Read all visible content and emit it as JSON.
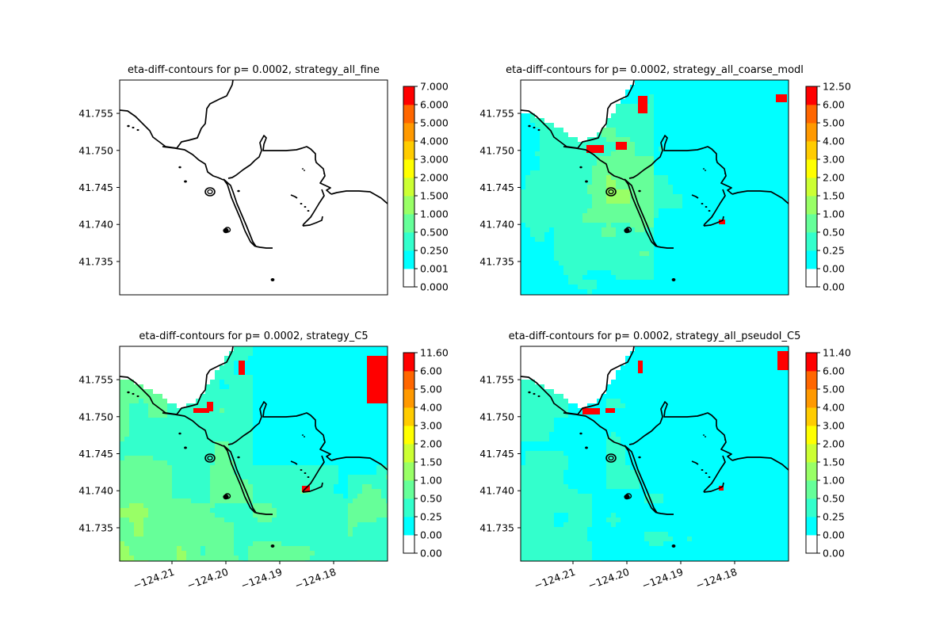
{
  "chart_data": [
    {
      "type": "heatmap",
      "title": "eta-diff-contours for p= 0.0002, strategy_all_fine",
      "colorbar_ticks": [
        "0.000",
        "0.001",
        "0.250",
        "0.500",
        "1.000",
        "1.500",
        "2.000",
        "3.000",
        "4.000",
        "5.000",
        "6.000",
        "7.000"
      ],
      "yticks": [
        "41.755",
        "41.750",
        "41.745",
        "41.740",
        "41.735"
      ],
      "xticks": [],
      "field": "none",
      "ylim": [
        41.7305,
        41.7595
      ]
    },
    {
      "type": "heatmap",
      "title": "eta-diff-contours for p= 0.0002, strategy_all_coarse_modl",
      "colorbar_ticks": [
        "0.00",
        "0.00",
        "0.25",
        "0.50",
        "1.00",
        "1.50",
        "2.00",
        "3.00",
        "4.00",
        "5.00",
        "6.00",
        "12.50"
      ],
      "yticks": [
        "41.755",
        "41.750",
        "41.745",
        "41.740",
        "41.735"
      ],
      "xticks": [],
      "field": "coarse",
      "ylim": [
        41.7305,
        41.7595
      ]
    },
    {
      "type": "heatmap",
      "title": "eta-diff-contours for p= 0.0002, strategy_C5",
      "colorbar_ticks": [
        "0.00",
        "0.00",
        "0.25",
        "0.50",
        "1.00",
        "1.50",
        "2.00",
        "3.00",
        "4.00",
        "5.00",
        "6.00",
        "11.60"
      ],
      "yticks": [
        "41.755",
        "41.750",
        "41.745",
        "41.740",
        "41.735"
      ],
      "xticks": [
        "−124.21",
        "−124.20",
        "−124.19",
        "−124.18"
      ],
      "field": "c5",
      "ylim": [
        41.7305,
        41.7595
      ]
    },
    {
      "type": "heatmap",
      "title": "eta-diff-contours for p= 0.0002, strategy_all_pseudoI_C5",
      "colorbar_ticks": [
        "0.00",
        "0.00",
        "0.25",
        "0.50",
        "1.00",
        "1.50",
        "2.00",
        "3.00",
        "4.00",
        "5.00",
        "6.00",
        "11.40"
      ],
      "yticks": [
        "41.755",
        "41.750",
        "41.745",
        "41.740",
        "41.735"
      ],
      "xticks": [
        "−124.21",
        "−124.20",
        "−124.19",
        "−124.18"
      ],
      "field": "pseudo",
      "ylim": [
        41.7305,
        41.7595
      ]
    }
  ],
  "colors": {
    "levels": [
      "#ffffff",
      "#00ffff",
      "#33ffcc",
      "#66ff99",
      "#99ff66",
      "#ccff33",
      "#ffff00",
      "#ffcc00",
      "#ff9900",
      "#ff6600",
      "#ff0000"
    ],
    "coastline": "#000000",
    "axes": "#000000"
  }
}
